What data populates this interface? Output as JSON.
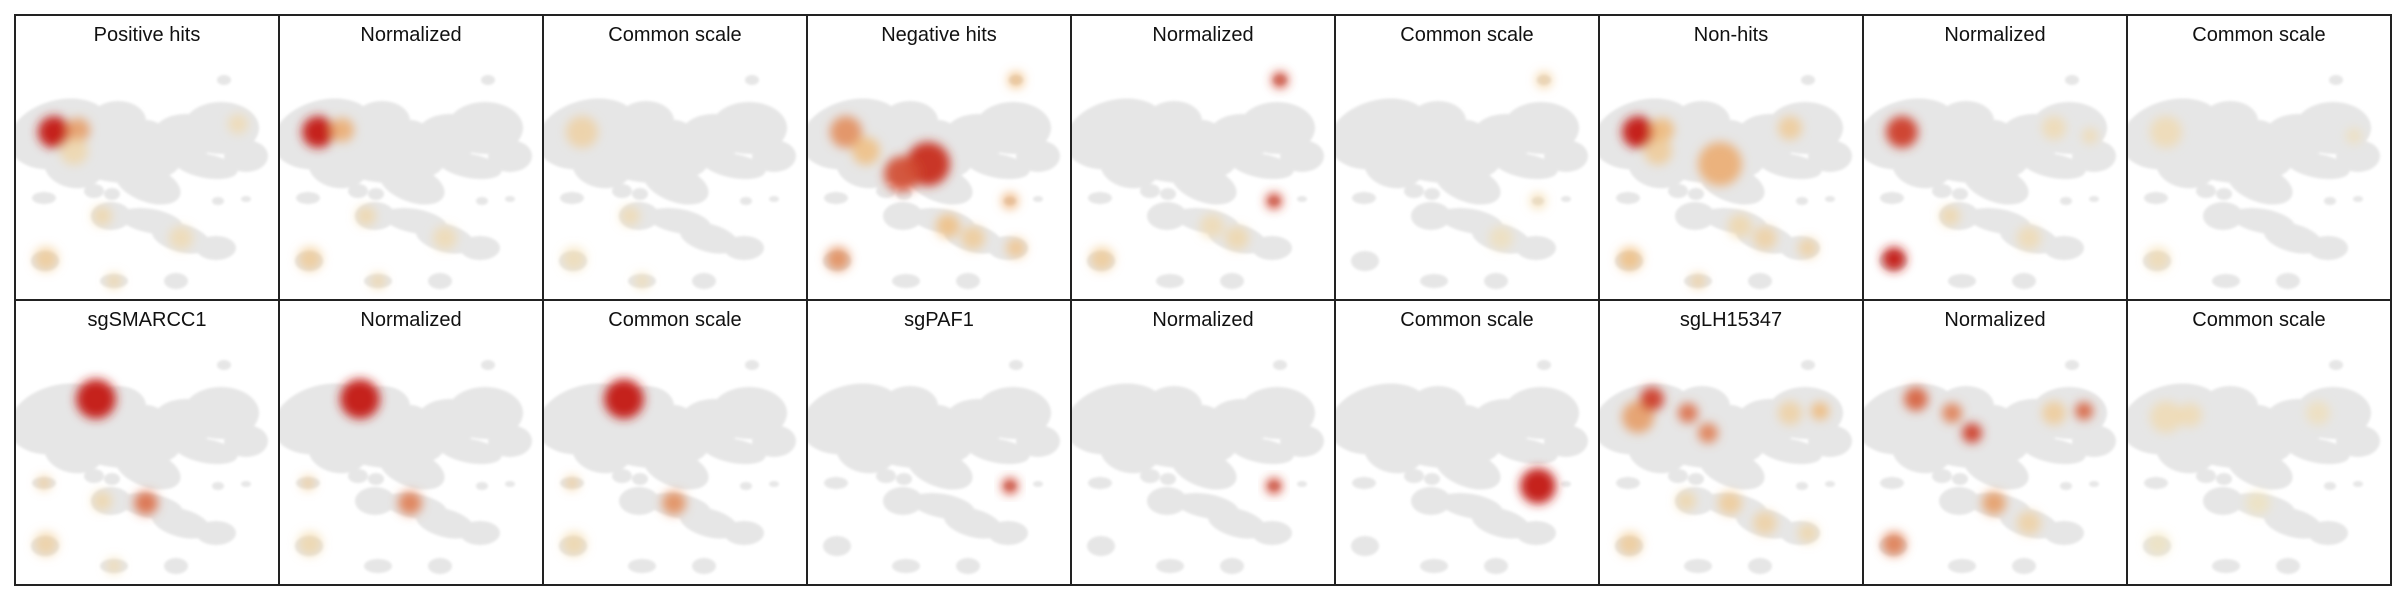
{
  "panels": [
    {
      "title": "Positive hits",
      "row": 0,
      "col": 0,
      "heat": [
        [
          "a",
          1.0
        ],
        [
          "b",
          0.6
        ],
        [
          "e",
          0.25
        ],
        [
          "i",
          0.25
        ],
        [
          "k",
          0.35
        ],
        [
          "m",
          0.2
        ],
        [
          "o",
          0.25
        ],
        [
          "g",
          0.2
        ]
      ]
    },
    {
      "title": "Normalized",
      "row": 0,
      "col": 1,
      "heat": [
        [
          "a",
          1.0
        ],
        [
          "b",
          0.55
        ],
        [
          "k",
          0.35
        ],
        [
          "i",
          0.25
        ],
        [
          "m",
          0.2
        ],
        [
          "o",
          0.25
        ]
      ]
    },
    {
      "title": "Common scale",
      "row": 0,
      "col": 2,
      "heat": [
        [
          "a",
          0.3
        ],
        [
          "i",
          0.2
        ],
        [
          "k",
          0.18
        ],
        [
          "o",
          0.18
        ]
      ]
    },
    {
      "title": "Negative hits",
      "row": 0,
      "col": 3,
      "heat": [
        [
          "a",
          0.65
        ],
        [
          "c",
          0.95
        ],
        [
          "d",
          0.85
        ],
        [
          "e",
          0.45
        ],
        [
          "f",
          0.5
        ],
        [
          "k",
          0.65
        ],
        [
          "l",
          0.55
        ],
        [
          "m",
          0.35
        ],
        [
          "n",
          0.45
        ],
        [
          "p",
          0.4
        ]
      ]
    },
    {
      "title": "Normalized",
      "row": 0,
      "col": 4,
      "heat": [
        [
          "f",
          0.9
        ],
        [
          "l",
          0.9
        ],
        [
          "k",
          0.35
        ],
        [
          "m",
          0.25
        ],
        [
          "n",
          0.2
        ]
      ]
    },
    {
      "title": "Common scale",
      "row": 0,
      "col": 5,
      "heat": [
        [
          "f",
          0.35
        ],
        [
          "l",
          0.25
        ],
        [
          "m",
          0.15
        ]
      ]
    },
    {
      "title": "Non-hits",
      "row": 0,
      "col": 6,
      "heat": [
        [
          "a",
          1.0
        ],
        [
          "b",
          0.5
        ],
        [
          "c",
          0.55
        ],
        [
          "e",
          0.35
        ],
        [
          "h",
          0.35
        ],
        [
          "k",
          0.45
        ],
        [
          "m",
          0.3
        ],
        [
          "n",
          0.25
        ],
        [
          "o",
          0.3
        ],
        [
          "p",
          0.3
        ]
      ]
    },
    {
      "title": "Normalized",
      "row": 0,
      "col": 7,
      "heat": [
        [
          "a",
          0.9
        ],
        [
          "k",
          1.0
        ],
        [
          "i",
          0.25
        ],
        [
          "h",
          0.2
        ],
        [
          "q",
          0.2
        ],
        [
          "m",
          0.2
        ]
      ]
    },
    {
      "title": "Common scale",
      "row": 0,
      "col": 8,
      "heat": [
        [
          "a",
          0.2
        ],
        [
          "k",
          0.2
        ],
        [
          "q",
          0.15
        ]
      ]
    },
    {
      "title": "sgSMARCC1",
      "row": 1,
      "col": 0,
      "heat": [
        [
          "r",
          1.0
        ],
        [
          "s",
          0.75
        ],
        [
          "t",
          0.35
        ],
        [
          "k",
          0.3
        ],
        [
          "i",
          0.25
        ],
        [
          "o",
          0.2
        ]
      ]
    },
    {
      "title": "Normalized",
      "row": 1,
      "col": 1,
      "heat": [
        [
          "r",
          1.0
        ],
        [
          "s",
          0.7
        ],
        [
          "t",
          0.35
        ],
        [
          "k",
          0.25
        ]
      ]
    },
    {
      "title": "Common scale",
      "row": 1,
      "col": 2,
      "heat": [
        [
          "r",
          1.0
        ],
        [
          "s",
          0.65
        ],
        [
          "t",
          0.35
        ],
        [
          "k",
          0.25
        ]
      ]
    },
    {
      "title": "sgPAF1",
      "row": 1,
      "col": 3,
      "heat": [
        [
          "l",
          0.9
        ]
      ]
    },
    {
      "title": "Normalized",
      "row": 1,
      "col": 4,
      "heat": [
        [
          "l",
          0.9
        ]
      ]
    },
    {
      "title": "Common scale",
      "row": 1,
      "col": 5,
      "heat": [
        [
          "u",
          1.0
        ]
      ]
    },
    {
      "title": "sgLH15347",
      "row": 1,
      "col": 6,
      "heat": [
        [
          "a",
          0.6
        ],
        [
          "v",
          0.9
        ],
        [
          "w",
          0.75
        ],
        [
          "x",
          0.7
        ],
        [
          "y",
          0.5
        ],
        [
          "s",
          0.35
        ],
        [
          "k",
          0.35
        ],
        [
          "h",
          0.3
        ],
        [
          "i",
          0.25
        ],
        [
          "m",
          0.3
        ],
        [
          "p",
          0.25
        ]
      ]
    },
    {
      "title": "Normalized",
      "row": 1,
      "col": 7,
      "heat": [
        [
          "v",
          0.8
        ],
        [
          "w",
          0.7
        ],
        [
          "x",
          0.9
        ],
        [
          "y",
          0.8
        ],
        [
          "k",
          0.7
        ],
        [
          "s",
          0.6
        ],
        [
          "h",
          0.35
        ],
        [
          "m",
          0.3
        ]
      ]
    },
    {
      "title": "Common scale",
      "row": 1,
      "col": 8,
      "heat": [
        [
          "a",
          0.2
        ],
        [
          "b",
          0.2
        ],
        [
          "h",
          0.15
        ],
        [
          "k",
          0.12
        ],
        [
          "s",
          0.12
        ]
      ]
    }
  ],
  "colors": {
    "background_cells": "#e6e6e6",
    "heat_low": "#f3efc9",
    "heat_mid": "#f0b36b",
    "heat_high": "#c5231a"
  }
}
